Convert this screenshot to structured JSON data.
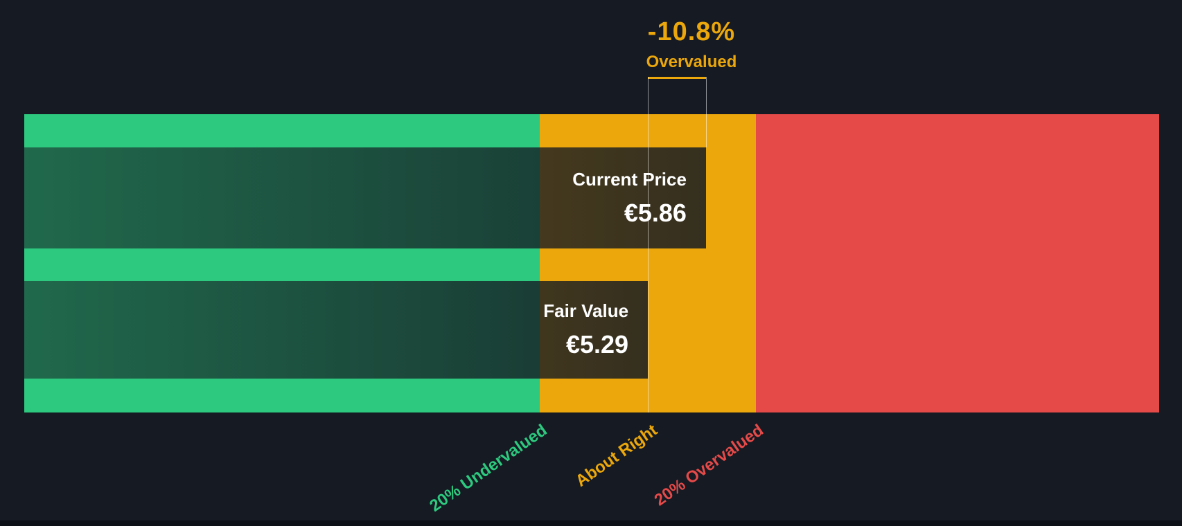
{
  "colors": {
    "background": "#151a23",
    "undervalued_green": "#2dc97e",
    "about_right_amber": "#eba70b",
    "overvalued_red": "#e54a49",
    "marker_line": "rgba(255,255,255,0.55)",
    "bar_text": "#ffffff"
  },
  "annotation": {
    "percent": "-10.8%",
    "label": "Overvalued"
  },
  "bars": {
    "current_price": {
      "label": "Current Price",
      "value": "€5.86"
    },
    "fair_value": {
      "label": "Fair Value",
      "value": "€5.29"
    }
  },
  "axis": {
    "undervalued": "20% Undervalued",
    "about_right": "About Right",
    "overvalued": "20% Overvalued"
  },
  "chart_data": {
    "type": "bar",
    "subtype": "share-price-vs-fair-value-gauge",
    "title": "",
    "currency": "EUR",
    "bars": [
      {
        "name": "Current Price",
        "value": 5.86,
        "display": "€5.86"
      },
      {
        "name": "Fair Value",
        "value": 5.29,
        "display": "€5.29"
      }
    ],
    "valuation_percent": -10.8,
    "valuation_label": "Overvalued",
    "zones": [
      {
        "label": "20% Undervalued",
        "color": "#2dc97e",
        "band_fraction": 0.454
      },
      {
        "label": "About Right",
        "color": "#eba70b",
        "band_fraction": 0.191
      },
      {
        "label": "20% Overvalued",
        "color": "#e54a49",
        "band_fraction": 0.355
      },
      {
        "note": "zone boundaries at fair value ±20%",
        "boundaries_eur": [
          4.23,
          6.35
        ]
      }
    ],
    "fair_value_marker_band_fraction": 0.5495,
    "current_price_marker_band_fraction": 0.6007,
    "grid": false,
    "legend_position": "none"
  }
}
